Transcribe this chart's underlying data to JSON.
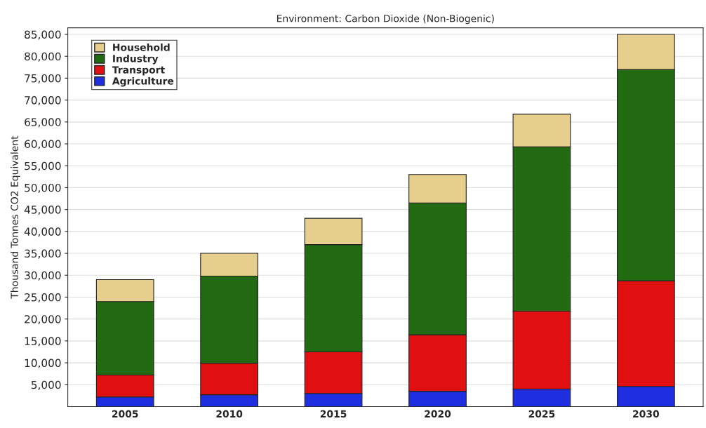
{
  "chart_data": {
    "type": "bar",
    "title": "Environment: Carbon Dioxide (Non-Biogenic)",
    "ylabel": "Thousand Tonnes CO2 Equivalent",
    "categories": [
      "2005",
      "2010",
      "2015",
      "2020",
      "2025",
      "2030"
    ],
    "stacked": true,
    "series": [
      {
        "name": "Agriculture",
        "color": "#1f2fe0",
        "values": [
          2200,
          2700,
          3000,
          3500,
          4000,
          4600
        ]
      },
      {
        "name": "Transport",
        "color": "#e01010",
        "values": [
          5000,
          7200,
          9500,
          12900,
          17800,
          24100
        ]
      },
      {
        "name": "Industry",
        "color": "#226b12",
        "values": [
          16800,
          19900,
          24500,
          30100,
          37500,
          48300
        ]
      },
      {
        "name": "Household",
        "color": "#e6cf8c",
        "values": [
          5000,
          5200,
          6000,
          6500,
          7500,
          8000
        ]
      }
    ],
    "ylim": [
      0,
      86500
    ],
    "yticks": [
      {
        "value": 5000,
        "label": "5,000"
      },
      {
        "value": 10000,
        "label": "10,000"
      },
      {
        "value": 15000,
        "label": "15,000"
      },
      {
        "value": 20000,
        "label": "20,000"
      },
      {
        "value": 25000,
        "label": "25,000"
      },
      {
        "value": 30000,
        "label": "30,000"
      },
      {
        "value": 35000,
        "label": "35,000"
      },
      {
        "value": 40000,
        "label": "40,000"
      },
      {
        "value": 45000,
        "label": "45,000"
      },
      {
        "value": 50000,
        "label": "50,000"
      },
      {
        "value": 55000,
        "label": "55,000"
      },
      {
        "value": 60000,
        "label": "60,000"
      },
      {
        "value": 65000,
        "label": "65,000"
      },
      {
        "value": 70000,
        "label": "70,000"
      },
      {
        "value": 75000,
        "label": "75,000"
      },
      {
        "value": 80000,
        "label": "80,000"
      },
      {
        "value": 85000,
        "label": "85,000"
      }
    ],
    "grid": "y",
    "legend": "top left"
  }
}
